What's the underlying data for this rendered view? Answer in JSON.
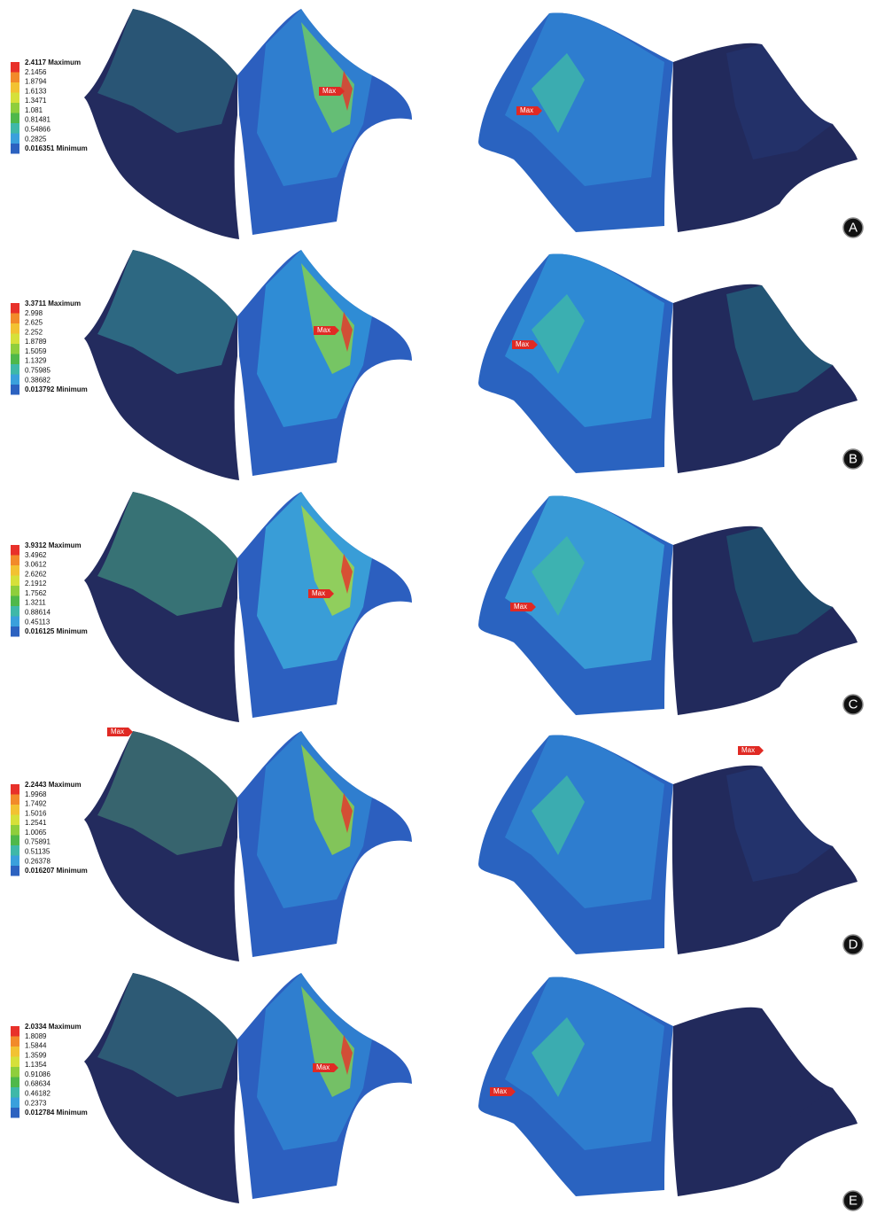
{
  "panels": [
    {
      "letter": "A",
      "max_word": "Maximum",
      "min_word": "Minimum",
      "max_tags": [
        "Max",
        "Max"
      ],
      "levels": [
        "2.4117",
        "2.1456",
        "1.8794",
        "1.6133",
        "1.3471",
        "1.081",
        "0.81481",
        "0.54866",
        "0.2825",
        "0.016351"
      ]
    },
    {
      "letter": "B",
      "max_word": "Maximum",
      "min_word": "Minimum",
      "max_tags": [
        "Max",
        "Max"
      ],
      "levels": [
        "3.3711",
        "2.998",
        "2.625",
        "2.252",
        "1.8789",
        "1.5059",
        "1.1329",
        "0.75985",
        "0.38682",
        "0.013792"
      ]
    },
    {
      "letter": "C",
      "max_word": "Maximum",
      "min_word": "Minimum",
      "max_tags": [
        "Max",
        "Max"
      ],
      "levels": [
        "3.9312",
        "3.4962",
        "3.0612",
        "2.6262",
        "2.1912",
        "1.7562",
        "1.3211",
        "0.88614",
        "0.45113",
        "0.016125"
      ]
    },
    {
      "letter": "D",
      "max_word": "Maximum",
      "min_word": "Minimum",
      "max_tags": [
        "Max",
        "Max"
      ],
      "levels": [
        "2.2443",
        "1.9968",
        "1.7492",
        "1.5016",
        "1.2541",
        "1.0065",
        "0.75891",
        "0.51135",
        "0.26378",
        "0.016207"
      ]
    },
    {
      "letter": "E",
      "max_word": "Maximum",
      "min_word": "Minimum",
      "max_tags": [
        "Max",
        "Max"
      ],
      "levels": [
        "2.0334",
        "1.8089",
        "1.5844",
        "1.3599",
        "1.1354",
        "0.91086",
        "0.68634",
        "0.46182",
        "0.2373",
        "0.012784"
      ]
    }
  ]
}
